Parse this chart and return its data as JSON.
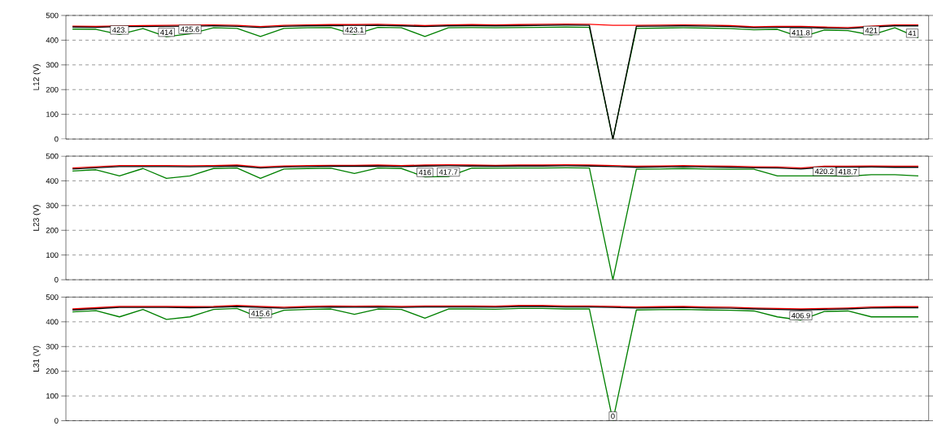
{
  "chart_data": [
    {
      "type": "line",
      "ylabel": "L12 (V)",
      "tick_labels": "y",
      "grid": "y",
      "categories": [
        null,
        null,
        null,
        null,
        null,
        null,
        null,
        null,
        null,
        null,
        null,
        null,
        null,
        null,
        null,
        null,
        null,
        null,
        null,
        null,
        null,
        null,
        null,
        null,
        null,
        null,
        null,
        null,
        null,
        null,
        null,
        null,
        null,
        null,
        null,
        null,
        null
      ],
      "ylim": [
        0,
        500
      ],
      "yticks": [
        0,
        100,
        200,
        300,
        400,
        500
      ],
      "series": [
        {
          "color": "#008000",
          "values": [
            445,
            444,
            423,
            447,
            414,
            425.6,
            450,
            448,
            415,
            448,
            450,
            451,
            423.1,
            452,
            450,
            415,
            450,
            451,
            450,
            451,
            452,
            453,
            452,
            0,
            448,
            449,
            450,
            449,
            447,
            442,
            444,
            411.8,
            441,
            439,
            421,
            450,
            410
          ]
        },
        {
          "color": "#ff0000",
          "values": [
            457,
            456,
            null,
            459,
            460,
            null,
            462,
            460,
            455,
            460,
            462,
            463,
            463,
            464,
            462,
            459,
            462,
            463,
            462,
            463,
            464,
            465,
            464,
            460,
            460,
            461,
            462,
            461,
            459,
            454,
            456,
            456,
            453,
            451,
            457,
            462,
            462
          ]
        },
        {
          "color": "#000000",
          "values": [
            453,
            452,
            455,
            455,
            456,
            457,
            458,
            456,
            451,
            456,
            458,
            459,
            459,
            460,
            458,
            455,
            458,
            459,
            458,
            459,
            460,
            461,
            460,
            0,
            456,
            457,
            458,
            457,
            455,
            450,
            452,
            452,
            449,
            447,
            453,
            458,
            458
          ]
        }
      ],
      "annotations": [
        {
          "text": "423.",
          "y": 423
        },
        {
          "text": "414",
          "y": 414
        },
        {
          "text": "425.6",
          "y": 425.6
        },
        {
          "text": "423.1",
          "y": 423.1
        },
        {
          "text": "411.8",
          "y": 411.8
        },
        {
          "text": "421",
          "y": 421
        },
        {
          "text": "41",
          "y": 410
        }
      ]
    },
    {
      "type": "line",
      "ylabel": "L23 (V)",
      "tick_labels": "y",
      "grid": "y",
      "categories": [
        null,
        null,
        null,
        null,
        null,
        null,
        null,
        null,
        null,
        null,
        null,
        null,
        null,
        null,
        null,
        null,
        null,
        null,
        null,
        null,
        null,
        null,
        null,
        null,
        null,
        null,
        null,
        null,
        null,
        null,
        null,
        null,
        null,
        null,
        null,
        null,
        null
      ],
      "ylim": [
        0,
        500
      ],
      "yticks": [
        0,
        100,
        200,
        300,
        400,
        500
      ],
      "series": [
        {
          "color": "#008000",
          "values": [
            440,
            445,
            420,
            450,
            410,
            420,
            450,
            452,
            410,
            448,
            450,
            451,
            430,
            452,
            450,
            416,
            417.7,
            452,
            451,
            452,
            452,
            453,
            452,
            0,
            447,
            448,
            450,
            448,
            447,
            447,
            420,
            420,
            420.2,
            418.7,
            425,
            425,
            420
          ]
        },
        {
          "color": "#ff0000",
          "values": [
            452,
            457,
            462,
            462,
            462,
            461,
            462,
            464,
            456,
            460,
            462,
            463,
            463,
            464,
            462,
            464,
            465,
            464,
            463,
            464,
            464,
            465,
            464,
            462,
            459,
            460,
            462,
            460,
            459,
            457,
            456,
            452,
            459,
            459,
            460,
            459,
            459
          ]
        },
        {
          "color": "#000000",
          "values": [
            448,
            453,
            458,
            458,
            458,
            457,
            458,
            460,
            452,
            456,
            458,
            459,
            459,
            460,
            458,
            460,
            461,
            460,
            459,
            460,
            460,
            461,
            460,
            458,
            455,
            456,
            458,
            456,
            455,
            453,
            452,
            448,
            455,
            455,
            456,
            455,
            455
          ]
        }
      ],
      "annotations": [
        {
          "text": "416",
          "y": 416
        },
        {
          "text": "417.7",
          "y": 417.7
        },
        {
          "text": "420.2",
          "y": 420.2
        },
        {
          "text": "418.7",
          "y": 418.7
        }
      ]
    },
    {
      "type": "line",
      "ylabel": "L31 (V)",
      "tick_labels": "y",
      "grid": "y",
      "categories": [
        null,
        null,
        null,
        null,
        null,
        null,
        null,
        null,
        null,
        null,
        null,
        null,
        null,
        null,
        null,
        null,
        null,
        null,
        null,
        null,
        null,
        null,
        null,
        null,
        null,
        null,
        null,
        null,
        null,
        null,
        null,
        null,
        null,
        null,
        null,
        null,
        null
      ],
      "ylim": [
        0,
        500
      ],
      "yticks": [
        0,
        100,
        200,
        300,
        400,
        500
      ],
      "series": [
        {
          "color": "#008000",
          "values": [
            440,
            445,
            420,
            450,
            410,
            420,
            450,
            454,
            415.6,
            447,
            450,
            452,
            430,
            452,
            450,
            415,
            452,
            452,
            451,
            454,
            454,
            452,
            452,
            0,
            448,
            449,
            450,
            448,
            447,
            444,
            420,
            406.9,
            442,
            444,
            420,
            420,
            420
          ]
        },
        {
          "color": "#ff0000",
          "values": [
            452,
            457,
            462,
            462,
            462,
            461,
            462,
            466,
            462,
            459,
            462,
            464,
            463,
            464,
            462,
            464,
            464,
            464,
            463,
            466,
            466,
            464,
            464,
            462,
            460,
            461,
            462,
            460,
            459,
            456,
            454,
            452,
            454,
            456,
            460,
            461,
            461
          ]
        },
        {
          "color": "#000000",
          "values": [
            448,
            453,
            458,
            458,
            458,
            457,
            458,
            462,
            458,
            455,
            458,
            460,
            459,
            460,
            458,
            460,
            460,
            460,
            459,
            462,
            462,
            460,
            460,
            458,
            456,
            457,
            458,
            456,
            455,
            452,
            450,
            448,
            450,
            452,
            456,
            457,
            457
          ]
        }
      ],
      "annotations": [
        {
          "text": "415.6",
          "y": 415.6
        },
        {
          "text": "0",
          "y": 0
        },
        {
          "text": "406.9",
          "y": 406.9
        }
      ]
    }
  ]
}
